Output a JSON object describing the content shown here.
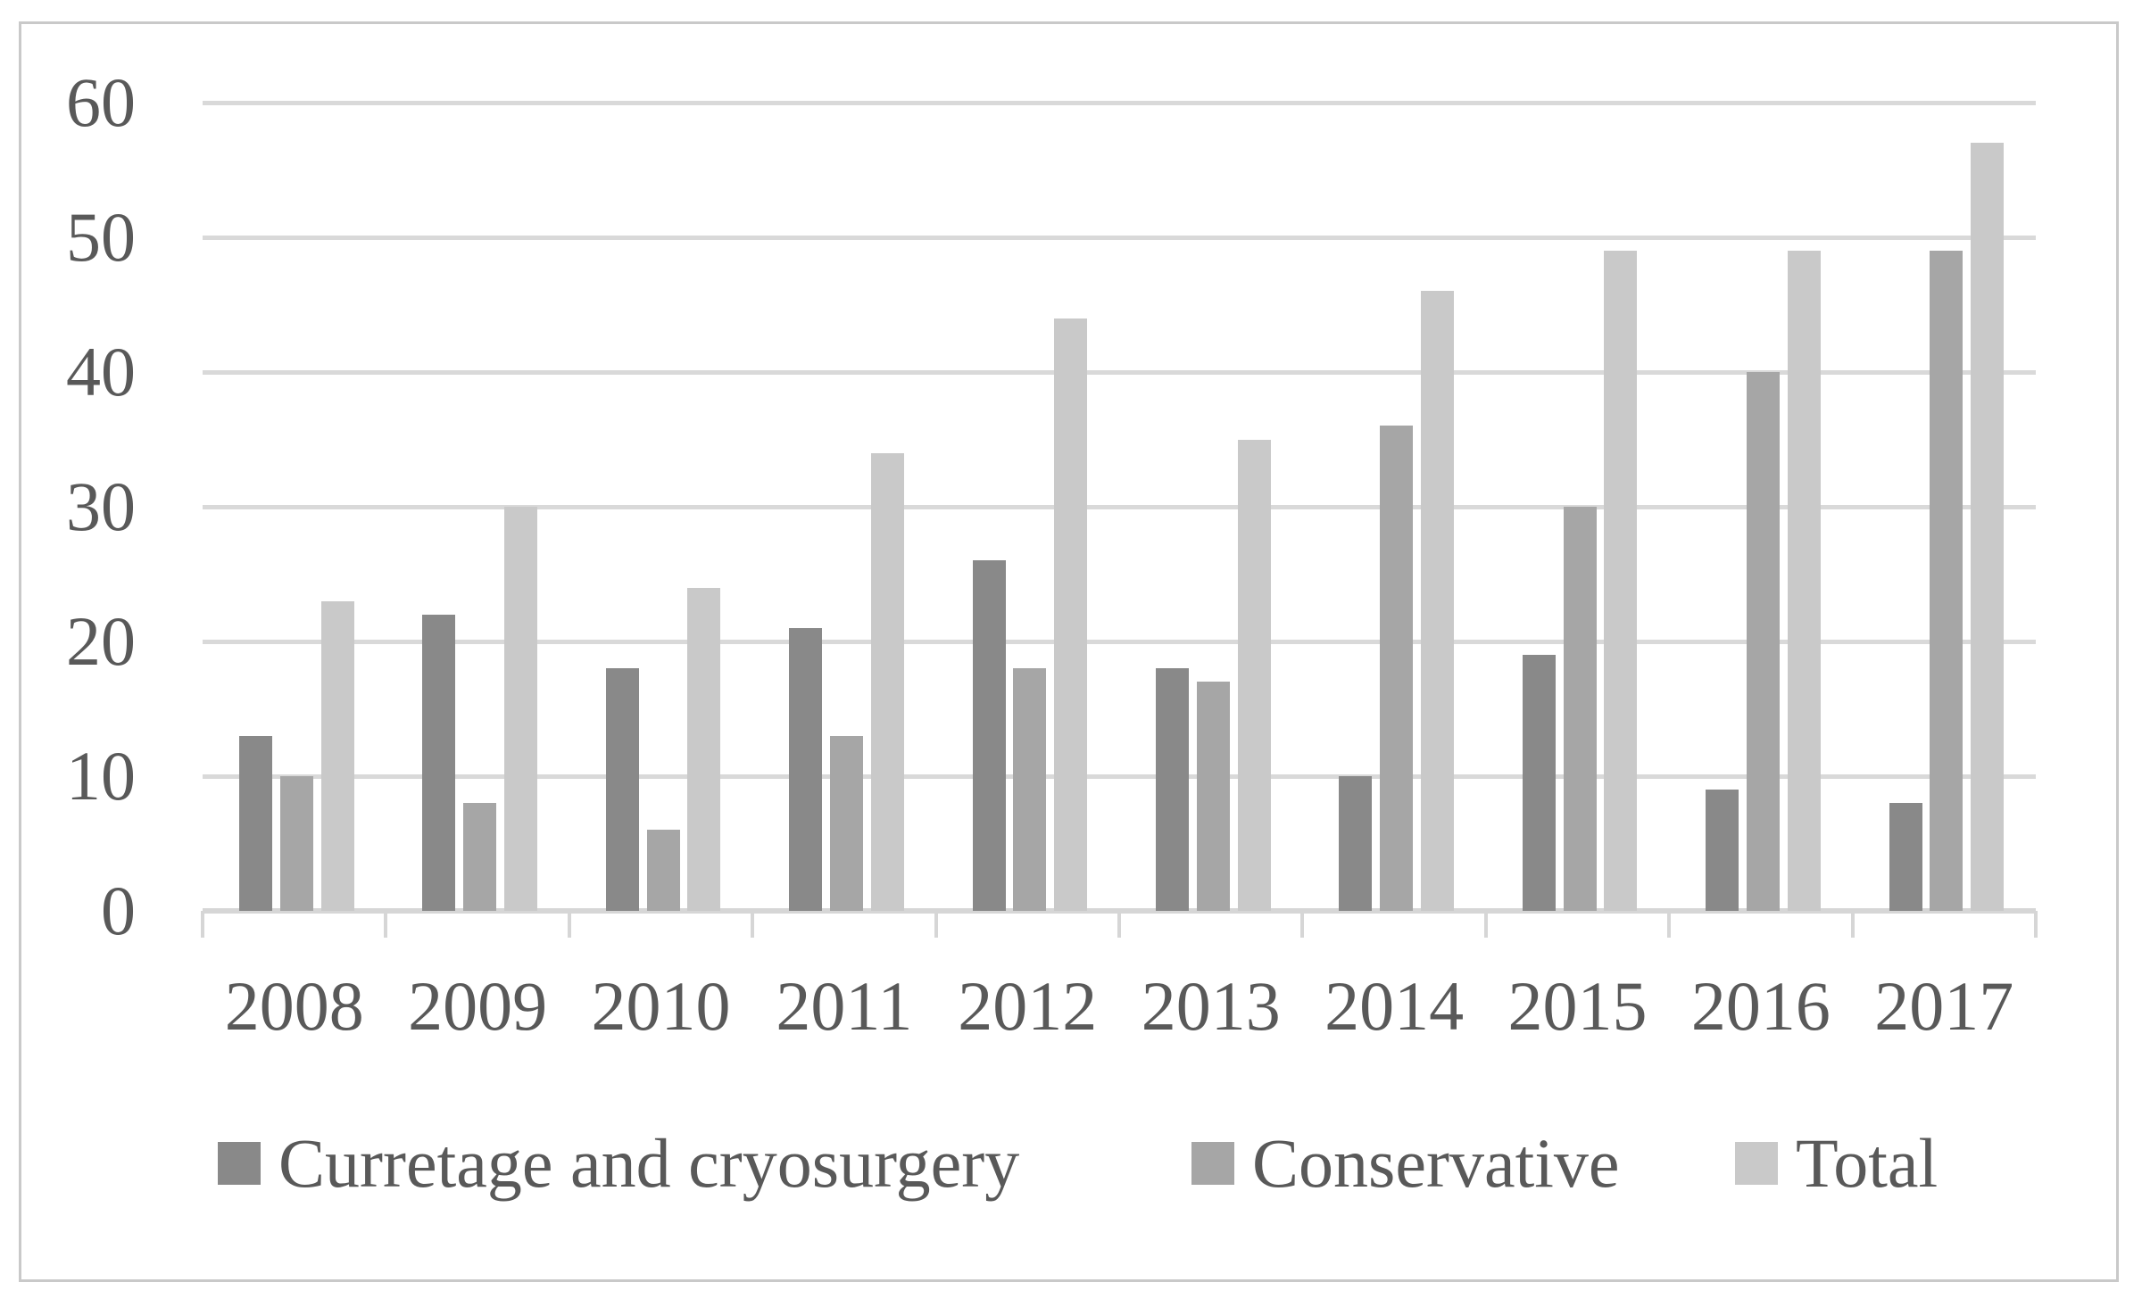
{
  "chart_data": {
    "type": "bar",
    "title": "",
    "xlabel": "",
    "ylabel": "",
    "categories": [
      "2008",
      "2009",
      "2010",
      "2011",
      "2012",
      "2013",
      "2014",
      "2015",
      "2016",
      "2017"
    ],
    "series": [
      {
        "name": "Curretage and cryosurgery",
        "color": "#898989",
        "values": [
          13,
          22,
          18,
          21,
          26,
          18,
          10,
          19,
          9,
          8
        ]
      },
      {
        "name": "Conservative",
        "color": "#a6a6a6",
        "values": [
          10,
          8,
          6,
          13,
          18,
          17,
          36,
          30,
          40,
          49
        ]
      },
      {
        "name": "Total",
        "color": "#c9c9c9",
        "values": [
          23,
          30,
          24,
          34,
          44,
          35,
          46,
          49,
          49,
          57
        ]
      }
    ],
    "ylim": [
      0,
      60
    ],
    "ytick_step": 10,
    "yticks": [
      "0",
      "10",
      "20",
      "30",
      "40",
      "50",
      "60"
    ],
    "grid": true,
    "legend_position": "bottom",
    "colors": {
      "gridline": "#d9d9d9",
      "axis": "#d6d6d6",
      "text": "#595959",
      "frame_border": "#c9c9c9",
      "background": "#ffffff"
    }
  }
}
